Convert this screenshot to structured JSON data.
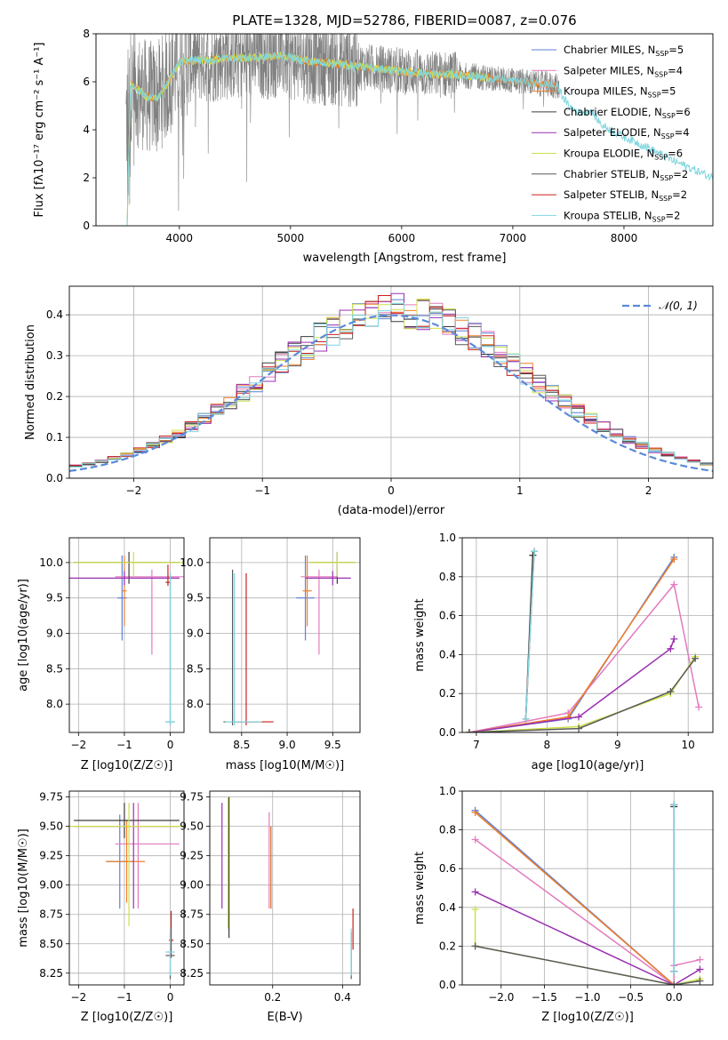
{
  "colors": {
    "chabrier_miles": "#5b7fd6",
    "salpeter_miles": "#e37bbf",
    "kroupa_miles": "#f07f28",
    "chabrier_elodie": "#3a3a3a",
    "salpeter_elodie": "#9a2fb0",
    "kroupa_elodie": "#cfe04a",
    "chabrier_stelib": "#5a5a5a",
    "salpeter_stelib": "#cc1f1f",
    "kroupa_stelib": "#7fd6e0",
    "data": "#7f7f7f",
    "normal": "#5b8ad9",
    "grid": "#b0b0b0"
  },
  "legend_entries": [
    {
      "key": "chabrier_miles",
      "label": "Chabrier MILES, N",
      "sub": "SSP",
      "tail": "=5"
    },
    {
      "key": "salpeter_miles",
      "label": "Salpeter MILES, N",
      "sub": "SSP",
      "tail": "=4"
    },
    {
      "key": "kroupa_miles",
      "label": "Kroupa MILES, N",
      "sub": "SSP",
      "tail": "=5"
    },
    {
      "key": "chabrier_elodie",
      "label": "Chabrier ELODIE, N",
      "sub": "SSP",
      "tail": "=6"
    },
    {
      "key": "salpeter_elodie",
      "label": "Salpeter ELODIE, N",
      "sub": "SSP",
      "tail": "=4"
    },
    {
      "key": "kroupa_elodie",
      "label": "Kroupa ELODIE, N",
      "sub": "SSP",
      "tail": "=6"
    },
    {
      "key": "chabrier_stelib",
      "label": "Chabrier STELIB, N",
      "sub": "SSP",
      "tail": "=2"
    },
    {
      "key": "salpeter_stelib",
      "label": "Salpeter STELIB, N",
      "sub": "SSP",
      "tail": "=2"
    },
    {
      "key": "kroupa_stelib",
      "label": "Kroupa STELIB, N",
      "sub": "SSP",
      "tail": "=2"
    }
  ],
  "chart_data": [
    {
      "id": "spectrum",
      "type": "line",
      "title": "PLATE=1328, MJD=52786, FIBERID=0087, z=0.076",
      "xlabel": "wavelength [Angstrom, rest frame]",
      "ylabel": "Flux [fλ10⁻¹⁷ erg cm⁻² s⁻¹ A⁻¹]",
      "xlim": [
        3250,
        8800
      ],
      "ylim": [
        0,
        8
      ],
      "xticks": [
        4000,
        5000,
        6000,
        7000,
        8000
      ],
      "yticks": [
        0,
        2,
        4,
        6,
        8
      ],
      "grid": false,
      "legend": "top-right",
      "continuum": {
        "x": [
          3550,
          3600,
          3700,
          3800,
          3900,
          4000,
          4100,
          4200,
          4300,
          4400,
          4500,
          4700,
          4900,
          5100,
          5300,
          5500,
          5700,
          5900,
          6100,
          6300,
          6500,
          6700,
          6900,
          7100,
          7300,
          7400,
          7500,
          7600,
          7700,
          7800,
          8000,
          8200,
          8400,
          8600,
          8800
        ],
        "y": [
          5.9,
          5.8,
          5.4,
          5.3,
          6.0,
          6.8,
          6.9,
          6.9,
          6.9,
          7.0,
          7.0,
          7.0,
          7.1,
          6.9,
          6.8,
          6.7,
          6.6,
          6.5,
          6.4,
          6.3,
          6.3,
          6.2,
          6.1,
          6.0,
          5.9,
          5.8,
          5.0,
          4.7,
          4.8,
          4.2,
          3.7,
          3.3,
          2.8,
          2.4,
          2.0
        ]
      },
      "data_range": [
        3520,
        7420
      ]
    },
    {
      "id": "residuals",
      "type": "histogram",
      "xlabel": "(data-model)/error",
      "ylabel": "Normed distribution",
      "xlim": [
        -2.5,
        2.5
      ],
      "ylim": [
        0,
        0.47
      ],
      "xticks": [
        -2,
        -1,
        0,
        1,
        2
      ],
      "yticks": [
        0.0,
        0.1,
        0.2,
        0.3,
        0.4
      ],
      "grid": true,
      "legend": "top-right",
      "legend_label": "𝒩(0, 1)",
      "bin_width": 0.1,
      "bin_start": -2.5
    },
    {
      "id": "age_vs_Z",
      "type": "errorbar",
      "xlabel": "Z [log10(Z/Z☉)]",
      "ylabel": "age  [log10(age/yr)]",
      "xlim": [
        -2.2,
        0.3
      ],
      "ylim": [
        7.6,
        10.35
      ],
      "xticks": [
        -2,
        -1,
        0
      ],
      "yticks": [
        8.0,
        8.5,
        9.0,
        9.5,
        10.0
      ],
      "grid": true,
      "points": [
        {
          "key": "chabrier_miles",
          "x": -1.05,
          "y": 9.5,
          "xerr": [
            0.1,
            0.1
          ],
          "yerr": [
            0.6,
            0.6
          ]
        },
        {
          "key": "salpeter_miles",
          "x": -0.4,
          "y": 9.8,
          "xerr": [
            0.8,
            0.7
          ],
          "yerr": [
            1.1,
            0.1
          ]
        },
        {
          "key": "kroupa_miles",
          "x": -1.0,
          "y": 9.6,
          "xerr": [
            0.05,
            0.05
          ],
          "yerr": [
            0.5,
            0.5
          ]
        },
        {
          "key": "chabrier_elodie",
          "x": -0.9,
          "y": 10.0,
          "xerr": [
            1.2,
            1.1
          ],
          "yerr": [
            0.3,
            0.15
          ]
        },
        {
          "key": "salpeter_elodie",
          "x": -1.0,
          "y": 9.78,
          "xerr": [
            1.3,
            1.2
          ],
          "yerr": [
            0.1,
            0.1
          ]
        },
        {
          "key": "kroupa_elodie",
          "x": -0.8,
          "y": 10.0,
          "xerr": [
            1.3,
            1.1
          ],
          "yerr": [
            0.2,
            0.15
          ]
        },
        {
          "key": "chabrier_stelib",
          "x": 0.0,
          "y": 7.75,
          "xerr": [
            0.1,
            0.1
          ],
          "yerr": [
            0.05,
            2.1
          ]
        },
        {
          "key": "salpeter_stelib",
          "x": -0.05,
          "y": 9.72,
          "xerr": [
            0.05,
            0.05
          ],
          "yerr": [
            0.05,
            0.25
          ]
        },
        {
          "key": "kroupa_stelib",
          "x": 0.0,
          "y": 7.75,
          "xerr": [
            0.1,
            0.1
          ],
          "yerr": [
            0.05,
            2.1
          ]
        }
      ]
    },
    {
      "id": "age_vs_mass",
      "type": "errorbar",
      "xlabel": "mass [log10(M/M☉)]",
      "ylabel": "",
      "xlim": [
        8.15,
        9.8
      ],
      "ylim": [
        7.6,
        10.35
      ],
      "xticks": [
        8.5,
        9.0,
        9.5
      ],
      "yticks": [
        8.0,
        8.5,
        9.0,
        9.5,
        10.0
      ],
      "grid": true,
      "points": [
        {
          "key": "chabrier_miles",
          "x": 9.2,
          "y": 9.5,
          "xerr": [
            0.1,
            0.1
          ],
          "yerr": [
            0.6,
            0.6
          ]
        },
        {
          "key": "salpeter_miles",
          "x": 9.35,
          "y": 9.8,
          "xerr": [
            0.2,
            0.2
          ],
          "yerr": [
            1.1,
            0.1
          ]
        },
        {
          "key": "kroupa_miles",
          "x": 9.22,
          "y": 9.6,
          "xerr": [
            0.05,
            0.05
          ],
          "yerr": [
            0.5,
            0.5
          ]
        },
        {
          "key": "chabrier_elodie",
          "x": 9.55,
          "y": 10.0,
          "xerr": [
            0.3,
            0.2
          ],
          "yerr": [
            0.3,
            0.15
          ]
        },
        {
          "key": "salpeter_elodie",
          "x": 9.5,
          "y": 9.78,
          "xerr": [
            0.3,
            0.2
          ],
          "yerr": [
            0.1,
            0.1
          ]
        },
        {
          "key": "kroupa_elodie",
          "x": 9.55,
          "y": 10.0,
          "xerr": [
            0.3,
            0.2
          ],
          "yerr": [
            0.2,
            0.15
          ]
        },
        {
          "key": "chabrier_stelib",
          "x": 8.4,
          "y": 7.75,
          "xerr": [
            0.1,
            0.3
          ],
          "yerr": [
            0.05,
            2.15
          ]
        },
        {
          "key": "salpeter_stelib",
          "x": 8.55,
          "y": 7.75,
          "xerr": [
            0.15,
            0.3
          ],
          "yerr": [
            0.05,
            2.1
          ]
        },
        {
          "key": "kroupa_stelib",
          "x": 8.42,
          "y": 7.75,
          "xerr": [
            0.1,
            0.3
          ],
          "yerr": [
            0.05,
            2.1
          ]
        }
      ]
    },
    {
      "id": "weight_vs_age",
      "type": "line",
      "xlabel": "age  [log10(age/yr)]",
      "ylabel": "mass weight",
      "xlim": [
        6.8,
        10.35
      ],
      "ylim": [
        0,
        1
      ],
      "xticks": [
        7,
        8,
        9,
        10
      ],
      "yticks": [
        0.0,
        0.2,
        0.4,
        0.6,
        0.8,
        1.0
      ],
      "grid": true,
      "series": [
        {
          "key": "chabrier_miles",
          "x": [
            6.9,
            8.3,
            9.8
          ],
          "y": [
            0.0,
            0.07,
            0.9
          ]
        },
        {
          "key": "salpeter_miles",
          "x": [
            6.9,
            8.3,
            9.8,
            10.15
          ],
          "y": [
            0.0,
            0.1,
            0.76,
            0.13
          ]
        },
        {
          "key": "kroupa_miles",
          "x": [
            6.9,
            8.3,
            9.8
          ],
          "y": [
            0.0,
            0.08,
            0.89
          ]
        },
        {
          "key": "chabrier_elodie",
          "x": [
            7.7,
            7.8
          ],
          "y": [
            0.07,
            0.91
          ]
        },
        {
          "key": "salpeter_elodie",
          "x": [
            6.9,
            8.45,
            9.75,
            9.8
          ],
          "y": [
            0.0,
            0.08,
            0.43,
            0.48
          ]
        },
        {
          "key": "kroupa_elodie",
          "x": [
            6.9,
            8.45,
            9.75,
            10.1
          ],
          "y": [
            0.0,
            0.03,
            0.2,
            0.39
          ]
        },
        {
          "key": "chabrier_stelib",
          "x": [
            6.9,
            8.45,
            9.75,
            10.1
          ],
          "y": [
            0.0,
            0.02,
            0.21,
            0.38
          ]
        },
        {
          "key": "salpeter_stelib",
          "x": [
            7.7,
            7.82
          ],
          "y": [
            0.07,
            0.93
          ]
        },
        {
          "key": "kroupa_stelib",
          "x": [
            7.7,
            7.82
          ],
          "y": [
            0.07,
            0.93
          ]
        }
      ]
    },
    {
      "id": "mass_vs_Z",
      "type": "errorbar",
      "xlabel": "Z [log10(Z/Z☉)]",
      "ylabel": "mass [log10(M/M☉)]",
      "xlim": [
        -2.2,
        0.3
      ],
      "ylim": [
        8.15,
        9.8
      ],
      "xticks": [
        -2,
        -1,
        0
      ],
      "yticks": [
        8.25,
        8.5,
        8.75,
        9.0,
        9.25,
        9.5,
        9.75
      ],
      "grid": true,
      "points": [
        {
          "key": "chabrier_miles",
          "x": -1.1,
          "y": 9.2,
          "xerr": [
            0.3,
            0.3
          ],
          "yerr": [
            0.4,
            0.4
          ]
        },
        {
          "key": "salpeter_miles",
          "x": -0.7,
          "y": 9.35,
          "xerr": [
            0.5,
            0.9
          ],
          "yerr": [
            0.55,
            0.35
          ]
        },
        {
          "key": "kroupa_miles",
          "x": -0.95,
          "y": 9.2,
          "xerr": [
            0.45,
            0.4
          ],
          "yerr": [
            0.35,
            0.35
          ]
        },
        {
          "key": "chabrier_elodie",
          "x": -1.0,
          "y": 9.55,
          "xerr": [
            1.1,
            1.2
          ],
          "yerr": [
            0.15,
            0.15
          ]
        },
        {
          "key": "salpeter_elodie",
          "x": -0.8,
          "y": 9.5,
          "xerr": [
            1.3,
            1.0
          ],
          "yerr": [
            0.7,
            0.2
          ]
        },
        {
          "key": "kroupa_elodie",
          "x": -0.9,
          "y": 9.5,
          "xerr": [
            1.3,
            1.2
          ],
          "yerr": [
            0.85,
            0.2
          ]
        },
        {
          "key": "chabrier_stelib",
          "x": 0.0,
          "y": 8.4,
          "xerr": [
            0.1,
            0.1
          ],
          "yerr": [
            0.2,
            0.2
          ]
        },
        {
          "key": "salpeter_stelib",
          "x": 0.02,
          "y": 8.53,
          "xerr": [
            0.05,
            0.05
          ],
          "yerr": [
            0.15,
            0.25
          ]
        },
        {
          "key": "kroupa_stelib",
          "x": 0.0,
          "y": 8.43,
          "xerr": [
            0.1,
            0.1
          ],
          "yerr": [
            0.2,
            0.2
          ]
        }
      ]
    },
    {
      "id": "mass_vs_ebv",
      "type": "errorbar",
      "xlabel": "E(B-V)",
      "ylabel": "",
      "xlim": [
        0.02,
        0.45
      ],
      "ylim": [
        8.15,
        9.8
      ],
      "xticks": [
        0.2,
        0.4
      ],
      "yticks": [
        8.25,
        8.5,
        8.75,
        9.0,
        9.25,
        9.5,
        9.75
      ],
      "grid": true,
      "points": [
        {
          "key": "chabrier_miles",
          "x": 0.195,
          "y": 9.2,
          "xerr": [
            0,
            0
          ],
          "yerr": [
            0.4,
            0.3
          ]
        },
        {
          "key": "salpeter_miles",
          "x": 0.19,
          "y": 9.35,
          "xerr": [
            0,
            0
          ],
          "yerr": [
            0.55,
            0.27
          ]
        },
        {
          "key": "kroupa_miles",
          "x": 0.195,
          "y": 9.2,
          "xerr": [
            0,
            0
          ],
          "yerr": [
            0.4,
            0.3
          ]
        },
        {
          "key": "chabrier_elodie",
          "x": 0.075,
          "y": 9.2,
          "xerr": [
            0,
            0
          ],
          "yerr": [
            0.65,
            0.55
          ]
        },
        {
          "key": "salpeter_elodie",
          "x": 0.055,
          "y": 9.25,
          "xerr": [
            0,
            0
          ],
          "yerr": [
            0.45,
            0.45
          ]
        },
        {
          "key": "kroupa_elodie",
          "x": 0.072,
          "y": 9.25,
          "xerr": [
            0,
            0
          ],
          "yerr": [
            0.62,
            0.5
          ]
        },
        {
          "key": "chabrier_stelib",
          "x": 0.425,
          "y": 8.4,
          "xerr": [
            0,
            0
          ],
          "yerr": [
            0.2,
            0.2
          ]
        },
        {
          "key": "salpeter_stelib",
          "x": 0.43,
          "y": 8.6,
          "xerr": [
            0,
            0
          ],
          "yerr": [
            0.15,
            0.2
          ]
        },
        {
          "key": "kroupa_stelib",
          "x": 0.425,
          "y": 8.43,
          "xerr": [
            0,
            0
          ],
          "yerr": [
            0.2,
            0.2
          ]
        }
      ]
    },
    {
      "id": "weight_vs_Z",
      "type": "line",
      "xlabel": "Z [log10(Z/Z☉)]",
      "ylabel": "mass weight",
      "xlim": [
        -2.45,
        0.45
      ],
      "ylim": [
        0,
        1
      ],
      "xticks": [
        -2.0,
        -1.5,
        -1.0,
        -0.5,
        0.0
      ],
      "yticks": [
        0.0,
        0.2,
        0.4,
        0.6,
        0.8,
        1.0
      ],
      "grid": true,
      "series": [
        {
          "key": "chabrier_miles",
          "x": [
            -2.3,
            0.0
          ],
          "y": [
            0.9,
            0.0
          ]
        },
        {
          "key": "salpeter_miles",
          "x": [
            -2.3,
            0.0,
            0.0,
            0.3
          ],
          "y": [
            0.75,
            0.0,
            0.1,
            0.13
          ]
        },
        {
          "key": "kroupa_miles",
          "x": [
            -2.3,
            0.0
          ],
          "y": [
            0.89,
            0.0
          ]
        },
        {
          "key": "chabrier_elodie",
          "x": [
            0.0,
            0.0
          ],
          "y": [
            0.07,
            0.92
          ]
        },
        {
          "key": "salpeter_elodie",
          "x": [
            -2.3,
            0.0,
            0.3
          ],
          "y": [
            0.48,
            0.0,
            0.08
          ]
        },
        {
          "key": "kroupa_elodie",
          "x": [
            -2.3,
            -2.3,
            0.0,
            0.3
          ],
          "y": [
            0.39,
            0.2,
            0.0,
            0.03
          ]
        },
        {
          "key": "chabrier_stelib",
          "x": [
            -2.3,
            0.0,
            0.3
          ],
          "y": [
            0.2,
            0.0,
            0.02
          ]
        },
        {
          "key": "salpeter_stelib",
          "x": [
            0.0,
            0.0
          ],
          "y": [
            0.07,
            0.93
          ]
        },
        {
          "key": "kroupa_stelib",
          "x": [
            0.0,
            0.0
          ],
          "y": [
            0.07,
            0.93
          ]
        }
      ]
    }
  ]
}
